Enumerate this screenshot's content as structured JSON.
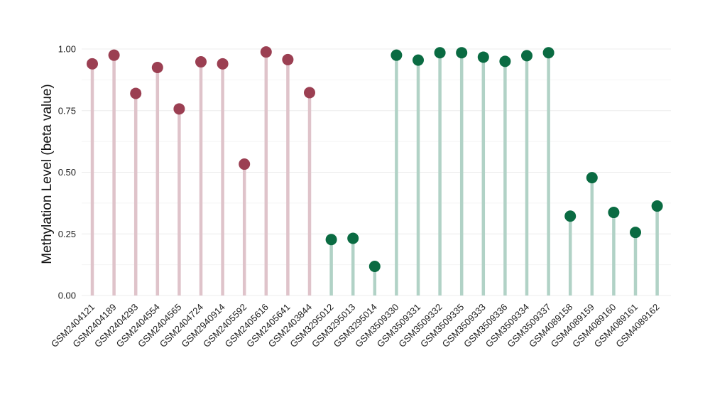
{
  "chart_data": {
    "type": "lollipop",
    "title": "",
    "xlabel": "",
    "ylabel": "Methylation Level (beta value)",
    "ylim": [
      0,
      1.0
    ],
    "yticks": [
      "0.00",
      "0.25",
      "0.50",
      "0.75",
      "1.00"
    ],
    "grid": true,
    "categories": [
      "GSM2404121",
      "GSM2404189",
      "GSM2404293",
      "GSM2404554",
      "GSM2404565",
      "GSM2404724",
      "GSM2940914",
      "GSM2405592",
      "GSM2405616",
      "GSM2405641",
      "GSM2403844",
      "GSM3295012",
      "GSM3295013",
      "GSM3295014",
      "GSM3509330",
      "GSM3509331",
      "GSM3509332",
      "GSM3509335",
      "GSM3509333",
      "GSM3509336",
      "GSM3509334",
      "GSM3509337",
      "GSM4089158",
      "GSM4089159",
      "GSM4089160",
      "GSM4089161",
      "GSM4089162"
    ],
    "values": [
      0.94,
      0.975,
      0.82,
      0.925,
      0.757,
      0.948,
      0.94,
      0.533,
      0.988,
      0.957,
      0.823,
      0.227,
      0.232,
      0.118,
      0.975,
      0.955,
      0.985,
      0.985,
      0.967,
      0.95,
      0.973,
      0.985,
      0.322,
      0.478,
      0.337,
      0.256,
      0.363
    ],
    "groups": [
      0,
      0,
      0,
      0,
      0,
      0,
      0,
      0,
      0,
      0,
      0,
      1,
      1,
      1,
      1,
      1,
      1,
      1,
      1,
      1,
      1,
      1,
      1,
      1,
      1,
      1,
      1
    ],
    "colors": {
      "group0_point": "#9b3f52",
      "group0_stem": "#dfc3ca",
      "group1_point": "#0a6b42",
      "group1_stem": "#b1d2c6",
      "grid": "#ececec"
    }
  }
}
